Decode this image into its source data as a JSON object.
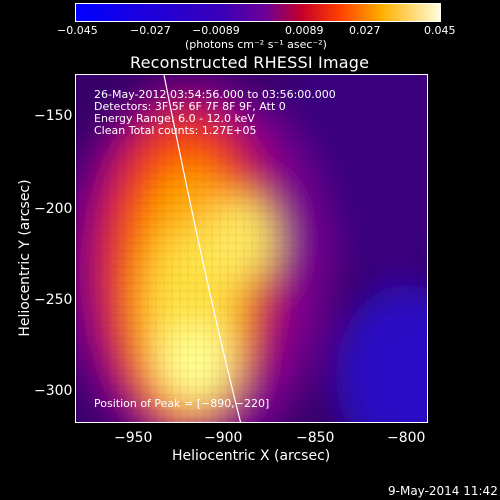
{
  "colorbar": {
    "min_label": "−0.045",
    "tick_labels": [
      "−0.045",
      "−0.027",
      "−0.0089",
      "0.0089",
      "0.027",
      "0.045"
    ],
    "units_label": "(photons cm⁻² s⁻¹ asec⁻²)"
  },
  "plot": {
    "title": "Reconstructed RHESSI Image",
    "xlabel": "Heliocentric X (arcsec)",
    "ylabel": "Heliocentric Y (arcsec)",
    "x_ticks": [
      "−950",
      "−900",
      "−850",
      "−800"
    ],
    "y_ticks": [
      "−150",
      "−200",
      "−250",
      "−300"
    ],
    "info_lines": [
      "26-May-2012 03:54:56.000 to 03:56:00.000",
      "Detectors: 3F 5F 6F 7F 8F 9F, Att 0",
      "Energy Range: 6.0 - 12.0 keV",
      "Clean    Total counts: 1.27E+05"
    ],
    "peak_label": "Position of Peak = [−890,−220]"
  },
  "footer": {
    "timestamp": "9-May-2014 11:42"
  }
}
